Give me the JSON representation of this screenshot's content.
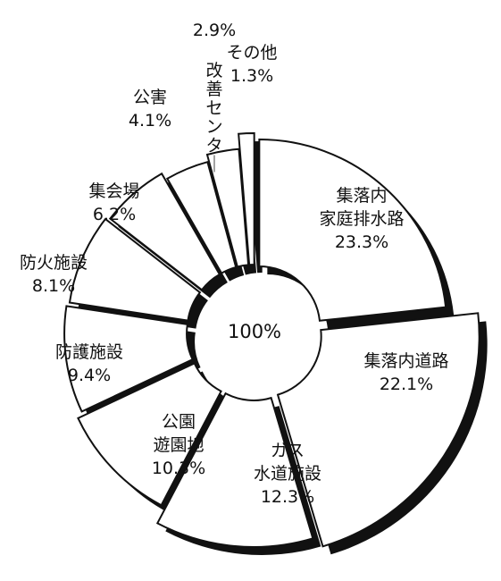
{
  "chart_data": {
    "type": "pie",
    "center_label": "100%",
    "unit": "%",
    "slices": [
      {
        "label": "集落内家庭排水路",
        "lines": [
          "集落内",
          "家庭排水路"
        ],
        "value": 23.3,
        "value_label": "23.3%"
      },
      {
        "label": "集落内道路",
        "lines": [
          "集落内道路"
        ],
        "value": 22.1,
        "value_label": "22.1%"
      },
      {
        "label": "ガス水道施設",
        "lines": [
          "ガス",
          "水道施設"
        ],
        "value": 12.3,
        "value_label": "12.3%"
      },
      {
        "label": "公園遊園地",
        "lines": [
          "公園",
          "遊園地"
        ],
        "value": 10.3,
        "value_label": "10.3%"
      },
      {
        "label": "防護施設",
        "lines": [
          "防護施設"
        ],
        "value": 9.4,
        "value_label": "9.4%"
      },
      {
        "label": "防火施設",
        "lines": [
          "防火施設"
        ],
        "value": 8.1,
        "value_label": "8.1%"
      },
      {
        "label": "集会場",
        "lines": [
          "集会場"
        ],
        "value": 6.2,
        "value_label": "6.2%"
      },
      {
        "label": "公害",
        "lines": [
          "公害"
        ],
        "value": 4.1,
        "value_label": "4.1%"
      },
      {
        "label": "改善センター",
        "lines": [
          "改善センター"
        ],
        "value": 2.9,
        "value_label": "2.9%"
      },
      {
        "label": "その他",
        "lines": [
          "その他"
        ],
        "value": 1.3,
        "value_label": "1.3%"
      }
    ],
    "colors": {
      "fill": "#ffffff",
      "stroke": "#111111",
      "shadow": "#111111"
    }
  }
}
